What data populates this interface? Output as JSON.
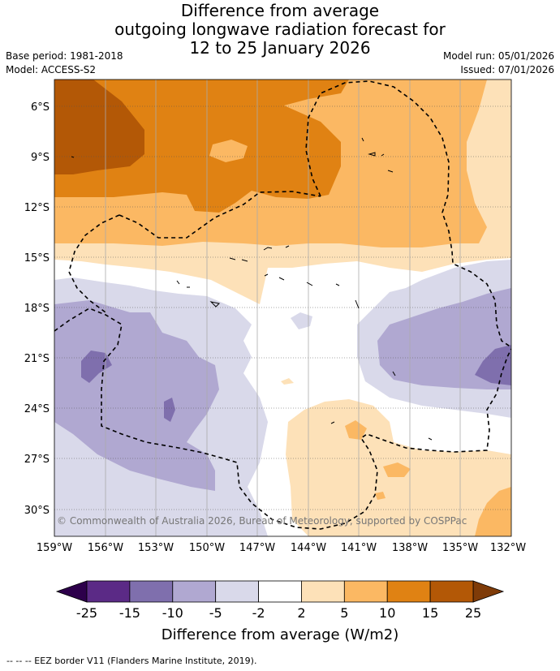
{
  "title": {
    "line1": "Difference from average",
    "line2": "outgoing longwave radiation forecast for",
    "line3": "12 to 25 January 2026"
  },
  "meta": {
    "base_period": "Base period: 1981-2018",
    "model": "Model: ACCESS-S2",
    "model_run": "Model run: 05/01/2026",
    "issued": "Issued: 07/01/2026"
  },
  "axes": {
    "lon_labels": [
      "159°W",
      "156°W",
      "153°W",
      "150°W",
      "147°W",
      "144°W",
      "141°W",
      "138°W",
      "135°W",
      "132°W"
    ],
    "lat_labels": [
      "6°S",
      "9°S",
      "12°S",
      "15°S",
      "18°S",
      "21°S",
      "24°S",
      "27°S",
      "30°S"
    ]
  },
  "copyright": "© Commonwealth of Australia 2026, Bureau of Meteorology, supported by COSPPac",
  "colorbar": {
    "ticks": [
      "-25",
      "-15",
      "-10",
      "-5",
      "-2",
      "2",
      "5",
      "10",
      "15",
      "25"
    ],
    "title": "Difference from average (W/m2)",
    "colors": [
      "#5b2a86",
      "#7f6fad",
      "#b0a8d1",
      "#d9d9ea",
      "#ffffff",
      "#fde1b8",
      "#fbb863",
      "#e08213",
      "#b35806"
    ],
    "under_color": "#2d004b",
    "over_color": "#7f3b08"
  },
  "footnote": "--  --  -- EEZ border V11 (Flanders Marine Institute, 2019).",
  "colors": {
    "strong_positive": "#b35806",
    "positive_high": "#e08213",
    "positive_mid": "#fbb863",
    "positive_low": "#fde1b8",
    "neutral": "#ffffff",
    "negative_low": "#d9d9ea",
    "negative_mid": "#b0a8d1",
    "negative_high": "#7f6fad"
  }
}
